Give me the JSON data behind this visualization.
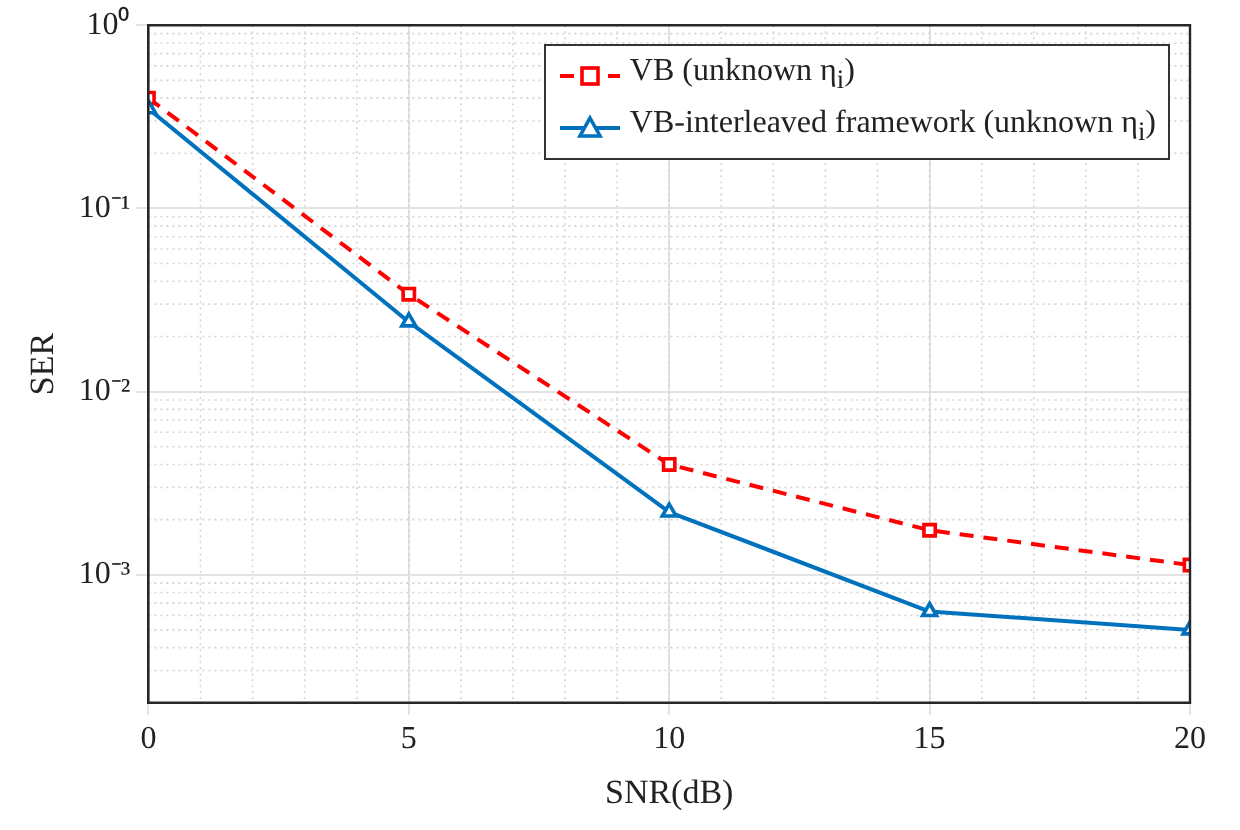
{
  "chart_data": {
    "type": "line",
    "xlabel": "SNR(dB)",
    "ylabel": "SER",
    "log": "y",
    "grid": true,
    "legend": "top right",
    "x": [
      0,
      5,
      10,
      15,
      20
    ],
    "xlim": [
      0,
      20
    ],
    "xticks": [
      0,
      5,
      10,
      15,
      20
    ],
    "ylim": [
      0.0002,
      1
    ],
    "yticks": [
      {
        "value": 0.001,
        "label": "10⁻³"
      },
      {
        "value": 0.01,
        "label": "10⁻²"
      },
      {
        "value": 0.1,
        "label": "10⁻¹"
      },
      {
        "value": 1,
        "label": "10⁰"
      }
    ],
    "series": [
      {
        "name": "VB (unknown η$_{i}$)",
        "color": "#ff0000",
        "marker": "square",
        "line_style": "dashed",
        "values": [
          0.4,
          0.034,
          0.004,
          0.00175,
          0.00113
        ]
      },
      {
        "name": "VB-interleaved framework (unknown η$_{i}$)",
        "color": "#0072bd",
        "marker": "triangle",
        "line_style": "solid",
        "values": [
          0.35,
          0.024,
          0.0022,
          0.00063,
          0.0005
        ]
      }
    ]
  }
}
